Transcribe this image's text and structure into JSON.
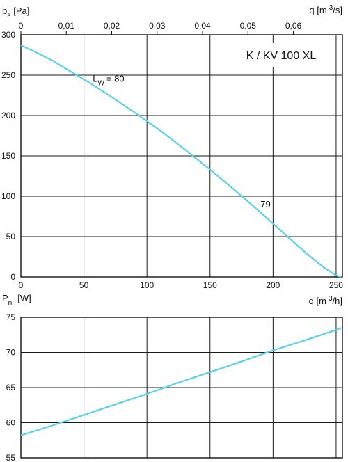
{
  "chart_data": [
    {
      "type": "line",
      "title": "K / KV 100 XL",
      "ylabel_main": "p",
      "ylabel_sub": "s",
      "ylabel_unit": "[Pa]",
      "x2label_main": "q [m",
      "x2label_sup": "3",
      "x2label_unit": "/s]",
      "xlim": [
        0,
        255
      ],
      "ylim": [
        0,
        300
      ],
      "x2lim": [
        0,
        0.0708
      ],
      "x_ticks": [
        "0",
        "50",
        "100",
        "150",
        "200",
        "250"
      ],
      "y_ticks": [
        "0",
        "50",
        "100",
        "150",
        "200",
        "250",
        "300"
      ],
      "x2_ticks": [
        "0",
        "0,01",
        "0,02",
        "0,03",
        "0,04",
        "0,05",
        "0,06"
      ],
      "grid": true,
      "annotations": [
        {
          "text_main": "L",
          "text_sub": "W",
          "text_rest": "= 80",
          "x": 57,
          "y": 242
        },
        {
          "text": "79",
          "x": 190,
          "y": 86
        }
      ],
      "series": [
        {
          "color": "#55d3ec",
          "x": [
            0,
            10,
            25,
            40,
            55,
            70,
            90,
            110,
            130,
            150,
            170,
            190,
            210,
            225,
            240,
            250,
            254
          ],
          "y": [
            287,
            280,
            268,
            254,
            240,
            225,
            204,
            182,
            158,
            133,
            107,
            80,
            52,
            31,
            12,
            2,
            0
          ]
        }
      ]
    },
    {
      "type": "line",
      "ylabel_main": "P",
      "ylabel_sub": "n",
      "ylabel_unit": "[W]",
      "xlabel_main": "q [m",
      "xlabel_sup": "3",
      "xlabel_unit": "/h]",
      "xlim": [
        0,
        255
      ],
      "ylim": [
        55,
        75
      ],
      "y_ticks": [
        "55",
        "60",
        "65",
        "70",
        "75"
      ],
      "grid": true,
      "series": [
        {
          "color": "#55d3ec",
          "x": [
            0,
            25,
            50,
            75,
            100,
            125,
            150,
            175,
            200,
            225,
            250,
            254
          ],
          "y": [
            58.2,
            59.6,
            61.1,
            62.6,
            64.1,
            65.7,
            67.2,
            68.7,
            70.3,
            71.7,
            73.2,
            73.5
          ]
        }
      ]
    }
  ]
}
